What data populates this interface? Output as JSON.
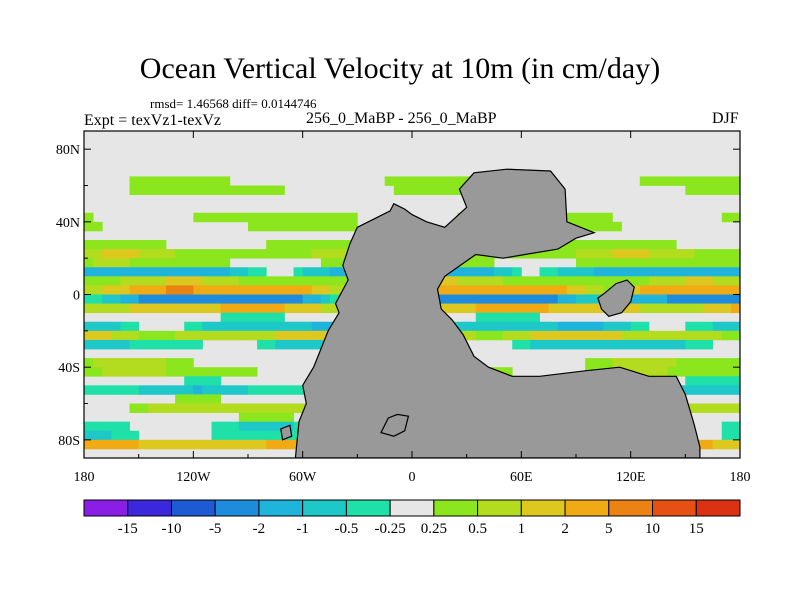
{
  "chart_data": {
    "type": "heatmap",
    "title": "Ocean Vertical Velocity at 10m (in cm/day)",
    "stats_text": "rmsd= 1.46568 diff= 0.0144746",
    "left_label": "Expt = texVz1-texVz",
    "center_label": "256_0_MaBP - 256_0_MaBP",
    "right_label": "DJF",
    "x_ticks": [
      "180",
      "120W",
      "60W",
      "0",
      "60E",
      "120E",
      "180"
    ],
    "y_ticks": [
      "80N",
      "40N",
      "0",
      "40S",
      "80S"
    ],
    "x_range": [
      -180,
      180
    ],
    "y_range": [
      -90,
      90
    ],
    "land_color": "#999999",
    "colorbar": {
      "labels": [
        "-15",
        "-10",
        "-5",
        "-2",
        "-1",
        "-0.5",
        "-0.25",
        "0.25",
        "0.5",
        "1",
        "2",
        "5",
        "10",
        "15"
      ],
      "colors": [
        "#8a1ee6",
        "#3c28dc",
        "#1e5ad2",
        "#1e8cdc",
        "#1eb4dc",
        "#1ec8c8",
        "#1ee0a8",
        "#e6e6e6",
        "#8ce61e",
        "#b4dc1e",
        "#dcc81e",
        "#f0aa14",
        "#eb8214",
        "#e65014",
        "#dc3214"
      ]
    },
    "bands": [
      {
        "lat": 60,
        "half_width": 5,
        "value": 0.4
      },
      {
        "lat": 40,
        "half_width": 3,
        "value": 0.7
      },
      {
        "lat": 22,
        "half_width": 6,
        "value": 0.8
      },
      {
        "lat": 12,
        "half_width": 3,
        "value": -1.5
      },
      {
        "lat": 6,
        "half_width": 3,
        "value": 1.2
      },
      {
        "lat": 2,
        "half_width": 2,
        "value": 4
      },
      {
        "lat": -3,
        "half_width": 3,
        "value": -3
      },
      {
        "lat": -9,
        "half_width": 3,
        "value": 3
      },
      {
        "lat": -15,
        "half_width": 4,
        "value": -1.5
      },
      {
        "lat": -22,
        "half_width": 3,
        "value": 1.5
      },
      {
        "lat": -28,
        "half_width": 5,
        "value": -0.7
      },
      {
        "lat": -40,
        "half_width": 6,
        "value": 0.6
      },
      {
        "lat": -52,
        "half_width": 5,
        "value": -0.8
      },
      {
        "lat": -62,
        "half_width": 6,
        "value": 0.8
      },
      {
        "lat": -75,
        "half_width": 6,
        "value": -0.6
      },
      {
        "lat": -83,
        "half_width": 2,
        "value": 4
      }
    ],
    "land": [
      {
        "name": "main-continent",
        "lon_lat": [
          [
            -30,
            37
          ],
          [
            -20,
            42
          ],
          [
            -12,
            46
          ],
          [
            -10,
            50
          ],
          [
            -4,
            47
          ],
          [
            0,
            44
          ],
          [
            8,
            40
          ],
          [
            18,
            37
          ],
          [
            30,
            48
          ],
          [
            26,
            58
          ],
          [
            34,
            67
          ],
          [
            52,
            69
          ],
          [
            76,
            68
          ],
          [
            84,
            58
          ],
          [
            85,
            40
          ],
          [
            100,
            34
          ],
          [
            90,
            31
          ],
          [
            80,
            25
          ],
          [
            62,
            22
          ],
          [
            50,
            20
          ],
          [
            35,
            22
          ],
          [
            25,
            15
          ],
          [
            18,
            10
          ],
          [
            14,
            3
          ],
          [
            16,
            -8
          ],
          [
            22,
            -14
          ],
          [
            28,
            -22
          ],
          [
            34,
            -34
          ],
          [
            42,
            -40
          ],
          [
            55,
            -45
          ],
          [
            70,
            -45
          ],
          [
            95,
            -42
          ],
          [
            114,
            -40
          ],
          [
            130,
            -45
          ],
          [
            145,
            -45
          ],
          [
            150,
            -55
          ],
          [
            155,
            -72
          ],
          [
            158,
            -84
          ],
          [
            158,
            -90
          ],
          [
            -64,
            -90
          ],
          [
            -62,
            -70
          ],
          [
            -58,
            -60
          ],
          [
            -60,
            -50
          ],
          [
            -54,
            -40
          ],
          [
            -50,
            -30
          ],
          [
            -46,
            -20
          ],
          [
            -40,
            -10
          ],
          [
            -42,
            -5
          ],
          [
            -35,
            8
          ],
          [
            -38,
            16
          ],
          [
            -34,
            28
          ],
          [
            -30,
            37
          ]
        ]
      },
      {
        "name": "eastern-landmass",
        "lon_lat": [
          [
            102,
            -2
          ],
          [
            106,
            1
          ],
          [
            112,
            6
          ],
          [
            118,
            8
          ],
          [
            122,
            4
          ],
          [
            120,
            -4
          ],
          [
            115,
            -10
          ],
          [
            108,
            -12
          ],
          [
            104,
            -8
          ],
          [
            102,
            -2
          ]
        ]
      },
      {
        "name": "southern-island",
        "lon_lat": [
          [
            -13,
            -68
          ],
          [
            -8,
            -66
          ],
          [
            -2,
            -67
          ],
          [
            -4,
            -75
          ],
          [
            -10,
            -78
          ],
          [
            -17,
            -76
          ],
          [
            -13,
            -68
          ]
        ]
      },
      {
        "name": "southwest-islet",
        "lon_lat": [
          [
            -72,
            -74
          ],
          [
            -67,
            -72
          ],
          [
            -66,
            -78
          ],
          [
            -71,
            -80
          ],
          [
            -72,
            -74
          ]
        ]
      }
    ]
  }
}
